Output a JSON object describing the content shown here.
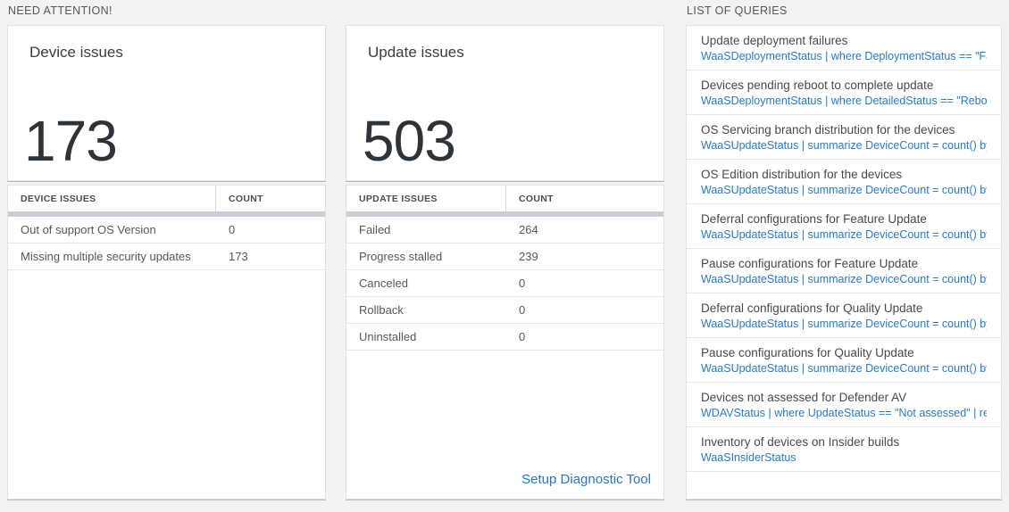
{
  "page": {
    "left_section_label": "NEED ATTENTION!",
    "right_section_label": "LIST OF QUERIES"
  },
  "cards": [
    {
      "title": "Device issues",
      "count": "173",
      "table": {
        "header_issue": "DEVICE ISSUES",
        "header_count": "COUNT",
        "rows": [
          {
            "label": "Out of support OS Version",
            "count": "0"
          },
          {
            "label": "Missing multiple security updates",
            "count": "173"
          }
        ]
      }
    },
    {
      "title": "Update issues",
      "count": "503",
      "table": {
        "header_issue": "UPDATE ISSUES",
        "header_count": "COUNT",
        "rows": [
          {
            "label": "Failed",
            "count": "264"
          },
          {
            "label": "Progress stalled",
            "count": "239"
          },
          {
            "label": "Canceled",
            "count": "0"
          },
          {
            "label": "Rollback",
            "count": "0"
          },
          {
            "label": "Uninstalled",
            "count": "0"
          }
        ]
      },
      "footer_link": "Setup Diagnostic Tool"
    }
  ],
  "queries": {
    "items": [
      {
        "title": "Update deployment failures",
        "query": "WaaSDeploymentStatus | where DeploymentStatus == \"Failed\" |..."
      },
      {
        "title": "Devices pending reboot to complete update",
        "query": "WaaSDeploymentStatus | where DetailedStatus == \"Reboot pend..."
      },
      {
        "title": "OS Servicing branch distribution for the devices",
        "query": "WaaSUpdateStatus | summarize DeviceCount = count() by OSSer..."
      },
      {
        "title": "OS Edition distribution for the devices",
        "query": "WaaSUpdateStatus | summarize DeviceCount = count() by OSEdit..."
      },
      {
        "title": "Deferral configurations for Feature Update",
        "query": "WaaSUpdateStatus | summarize DeviceCount = count() by Featur..."
      },
      {
        "title": "Pause configurations for Feature Update",
        "query": "WaaSUpdateStatus | summarize DeviceCount = count() by Featur..."
      },
      {
        "title": "Deferral configurations for Quality Update",
        "query": "WaaSUpdateStatus | summarize DeviceCount = count() by Qualit..."
      },
      {
        "title": "Pause configurations for Quality Update",
        "query": "WaaSUpdateStatus | summarize DeviceCount = count() by Qualit..."
      },
      {
        "title": "Devices not assessed for Defender AV",
        "query": "WDAVStatus | where UpdateStatus == \"Not assessed\" | render ta..."
      },
      {
        "title": "Inventory of devices on Insider builds",
        "query": "WaaSInsiderStatus"
      }
    ]
  },
  "colors": {
    "page_background": "#f2f2f2",
    "link_blue": "#2577c1",
    "divider_bar": "#c9cdd1",
    "big_number_text": "#2e3338"
  }
}
